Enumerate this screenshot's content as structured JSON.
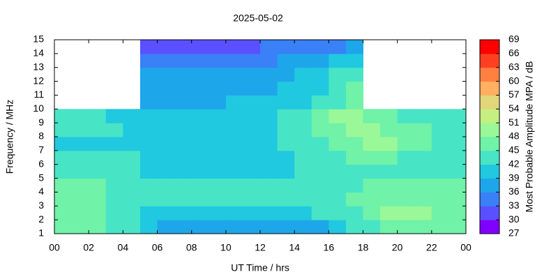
{
  "chart_data": {
    "type": "heatmap",
    "title": "2025-05-02",
    "xlabel": "UT Time / hrs",
    "ylabel": "Frequency / MHz",
    "colorbar_label": "Most Probable Amplitude MPA / dB",
    "xbins": [
      0,
      1,
      2,
      3,
      4,
      5,
      6,
      7,
      8,
      9,
      10,
      11,
      12,
      13,
      14,
      15,
      16,
      17,
      18,
      19,
      20,
      21,
      22,
      23,
      24
    ],
    "ybins": [
      1,
      2,
      3,
      4,
      5,
      6,
      7,
      8,
      9,
      10,
      11,
      12,
      13,
      14,
      15
    ],
    "values": [
      [
        46,
        46,
        45,
        44,
        42,
        40,
        38,
        38,
        38,
        38,
        38,
        38,
        38,
        38,
        38,
        38,
        40,
        42,
        44,
        46,
        47,
        47,
        47,
        46
      ],
      [
        47,
        47,
        46,
        44,
        42,
        41,
        41,
        41,
        41,
        41,
        41,
        41,
        41,
        41,
        41,
        42,
        43,
        44,
        46,
        48,
        48,
        48,
        47,
        47
      ],
      [
        45,
        45,
        45,
        44,
        43,
        42,
        42,
        42,
        42,
        42,
        42,
        42,
        42,
        42,
        43,
        43,
        44,
        45,
        46,
        47,
        47,
        47,
        46,
        46
      ],
      [
        46,
        45,
        45,
        44,
        43,
        42,
        42,
        42,
        42,
        42,
        42,
        42,
        42,
        42,
        42,
        42,
        43,
        44,
        45,
        46,
        47,
        47,
        46,
        46
      ],
      [
        42,
        42,
        42,
        42,
        42,
        41,
        41,
        41,
        41,
        41,
        41,
        41,
        41,
        41,
        42,
        42,
        43,
        44,
        44,
        44,
        44,
        43,
        43,
        42
      ],
      [
        42,
        42,
        42,
        42,
        42,
        41,
        41,
        41,
        41,
        41,
        41,
        41,
        41,
        41,
        42,
        43,
        44,
        45,
        45,
        45,
        44,
        44,
        43,
        42
      ],
      [
        41,
        41,
        41,
        41,
        41,
        41,
        41,
        41,
        41,
        41,
        41,
        41,
        41,
        42,
        43,
        44,
        45,
        47,
        48,
        48,
        47,
        46,
        44,
        42
      ],
      [
        42,
        42,
        42,
        42,
        41,
        41,
        41,
        41,
        41,
        41,
        41,
        41,
        41,
        42,
        43,
        45,
        47,
        48,
        48,
        47,
        46,
        45,
        44,
        43
      ],
      [
        42,
        42,
        42,
        41,
        41,
        41,
        41,
        41,
        41,
        41,
        41,
        41,
        41,
        42,
        43,
        46,
        48,
        48,
        46,
        45,
        44,
        43,
        42,
        42
      ],
      [
        null,
        null,
        null,
        null,
        null,
        38,
        38,
        38,
        38,
        38,
        39,
        39,
        39,
        39,
        40,
        42,
        44,
        45,
        null,
        null,
        null,
        null,
        null,
        null
      ],
      [
        null,
        null,
        null,
        null,
        null,
        37,
        37,
        37,
        37,
        37,
        38,
        38,
        38,
        39,
        40,
        41,
        43,
        45,
        null,
        null,
        null,
        null,
        null,
        null
      ],
      [
        null,
        null,
        null,
        null,
        null,
        36,
        36,
        36,
        36,
        36,
        37,
        37,
        37,
        38,
        39,
        40,
        42,
        43,
        null,
        null,
        null,
        null,
        null,
        null
      ],
      [
        null,
        null,
        null,
        null,
        null,
        33,
        33,
        34,
        34,
        34,
        35,
        35,
        35,
        36,
        37,
        38,
        39,
        40,
        null,
        null,
        null,
        null,
        null,
        null
      ],
      [
        null,
        null,
        null,
        null,
        null,
        31,
        31,
        31,
        31,
        31,
        32,
        32,
        33,
        33,
        33,
        34,
        35,
        36,
        null,
        null,
        null,
        null,
        null,
        null
      ]
    ],
    "xlim": [
      0,
      24
    ],
    "ylim": [
      1,
      15
    ],
    "xticks": [
      {
        "value": 0,
        "label": "00"
      },
      {
        "value": 2,
        "label": "02"
      },
      {
        "value": 4,
        "label": "04"
      },
      {
        "value": 6,
        "label": "06"
      },
      {
        "value": 8,
        "label": "08"
      },
      10,
      12,
      14,
      16,
      18,
      20,
      22,
      {
        "value": 24,
        "label": "00"
      }
    ],
    "yticks": [
      1,
      2,
      3,
      4,
      5,
      6,
      7,
      8,
      9,
      10,
      11,
      12,
      13,
      14,
      15
    ],
    "clim": [
      27,
      69
    ],
    "colorbar_ticks": [
      27,
      30,
      33,
      36,
      39,
      42,
      45,
      48,
      51,
      54,
      57,
      60,
      63,
      66,
      69
    ],
    "colors": [
      "#8000ff",
      "#5a50ff",
      "#3a80f6",
      "#1ea6ea",
      "#20c8e0",
      "#48e4c6",
      "#70f2a8",
      "#9af898",
      "#c4f082",
      "#e2d67a",
      "#ffb060",
      "#ff8040",
      "#ff4020",
      "#ff0000"
    ]
  }
}
